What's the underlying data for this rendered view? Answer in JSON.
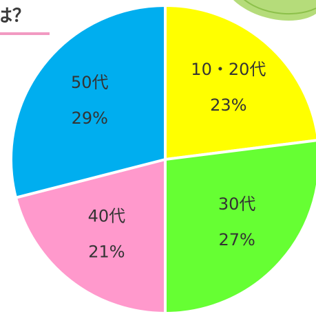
{
  "chart_data": {
    "type": "pie",
    "title": "は？",
    "categories": [
      "10・20代",
      "30代",
      "40代",
      "50代"
    ],
    "values": [
      23,
      27,
      21,
      29
    ],
    "value_labels": [
      "23%",
      "27%",
      "21%",
      "29%"
    ],
    "colors": [
      "#ffff00",
      "#66ff33",
      "#ff99cc",
      "#00aeef"
    ]
  }
}
